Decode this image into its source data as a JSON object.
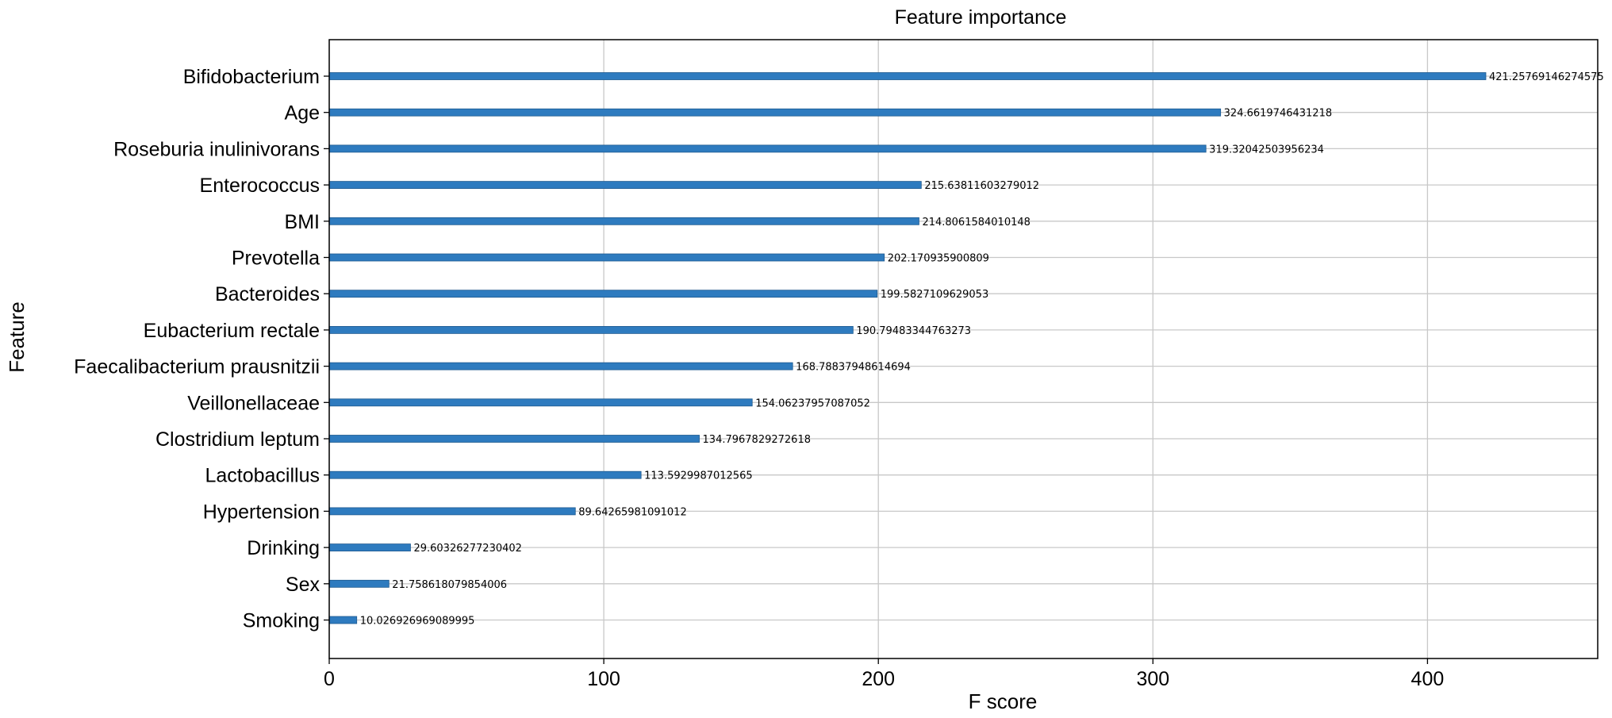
{
  "chart_data": {
    "type": "bar",
    "orientation": "horizontal",
    "title": "Feature importance",
    "xlabel": "F score",
    "ylabel": "Feature",
    "xlim": [
      0,
      462
    ],
    "xticks": [
      0,
      100,
      200,
      300,
      400
    ],
    "grid": true,
    "bar_color": "#2e7bbf",
    "categories": [
      "Bifidobacterium",
      "Age",
      "Roseburia inulinivorans",
      "Enterococcus",
      "BMI",
      "Prevotella",
      "Bacteroides",
      "Eubacterium rectale",
      "Faecalibacterium prausnitzii",
      "Veillonellaceae",
      "Clostridium leptum",
      "Lactobacillus",
      "Hypertension",
      "Drinking",
      "Sex",
      "Smoking"
    ],
    "values": [
      421.25769146274575,
      324.6619746431218,
      319.32042503956234,
      215.63811603279012,
      214.8061584010148,
      202.170935900809,
      199.5827109629053,
      190.79483344763273,
      168.78837948614694,
      154.06237957087052,
      134.7967829272618,
      113.5929987012565,
      89.64265981091012,
      29.60326277230402,
      21.758618079854006,
      10.026926969089995
    ],
    "value_labels": [
      "421.25769146274575",
      "324.6619746431218",
      "319.32042503956234",
      "215.63811603279012",
      "214.8061584010148",
      "202.170935900809",
      "199.5827109629053",
      "190.79483344763273",
      "168.78837948614694",
      "154.06237957087052",
      "134.7967829272618",
      "113.5929987012565",
      "89.64265981091012",
      "29.60326277230402",
      "21.758618079854006",
      "10.026926969089995"
    ]
  }
}
